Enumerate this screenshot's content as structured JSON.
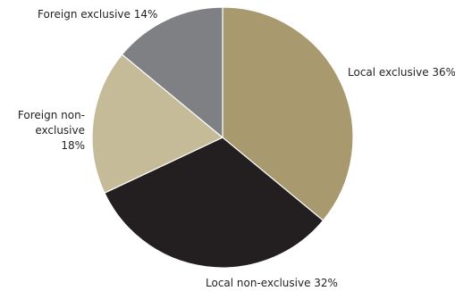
{
  "chart_data": {
    "type": "pie",
    "title": "",
    "slices": [
      {
        "label": "Local exclusive 36%",
        "value": 36,
        "color": "#a89a6e"
      },
      {
        "label": "Local non-exclusive 32%",
        "value": 32,
        "color": "#231f20"
      },
      {
        "label": "Foreign non-exclusive 18%",
        "value": 18,
        "color": "#c6bb98"
      },
      {
        "label": "Foreign exclusive 14%",
        "value": 14,
        "color": "#7f8083"
      }
    ],
    "start_direction": "top",
    "direction": "clockwise",
    "legend": "none"
  }
}
